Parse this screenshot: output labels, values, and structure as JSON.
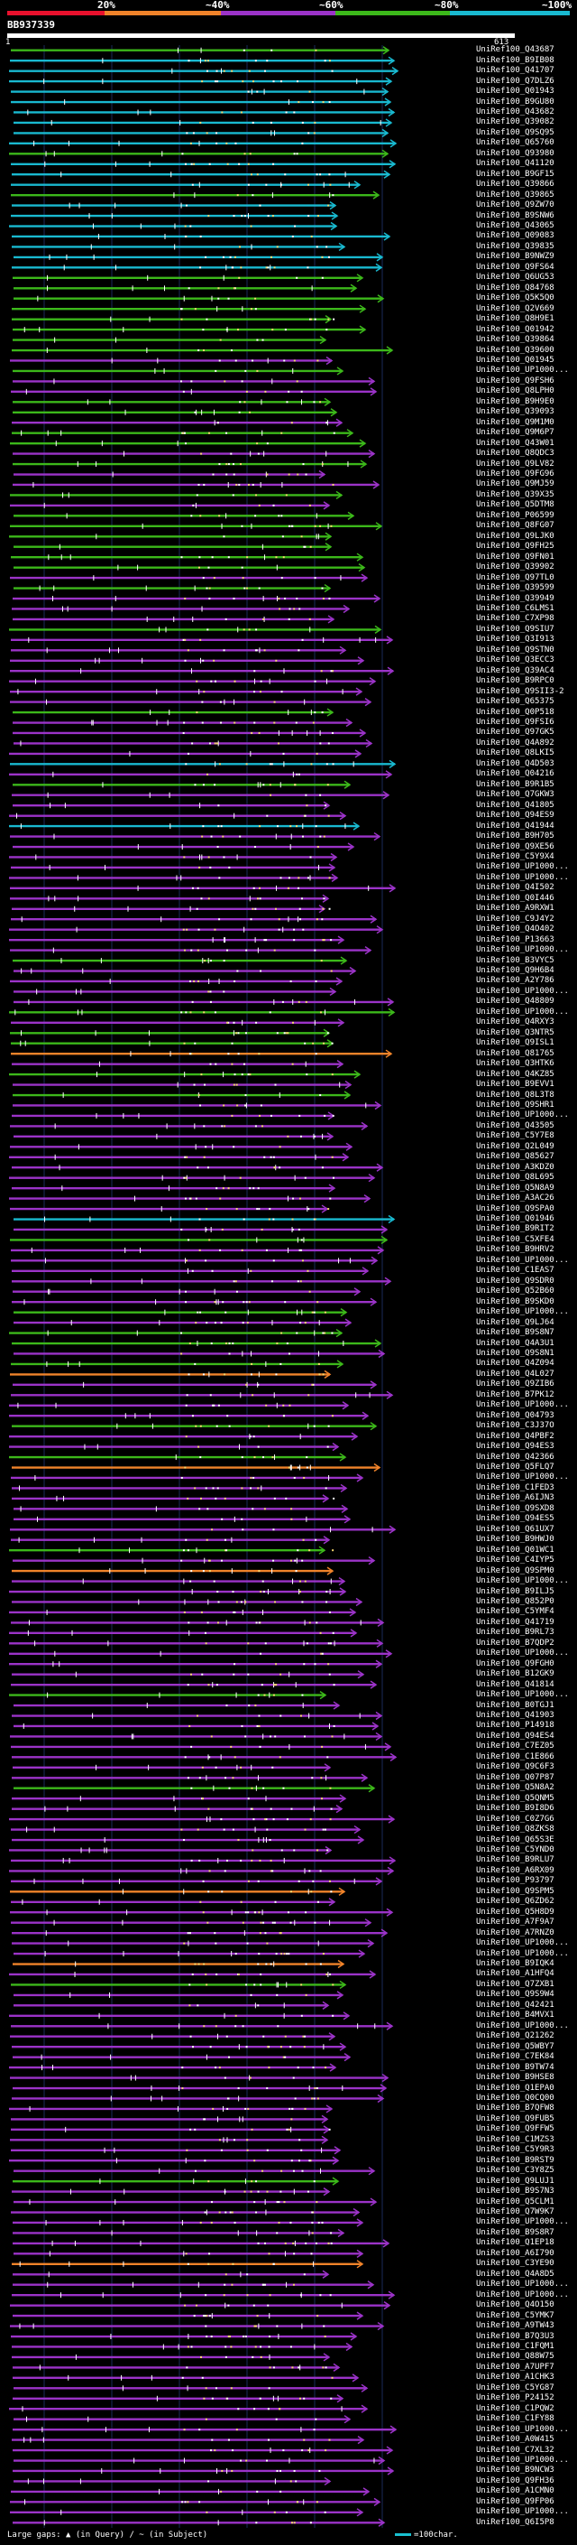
{
  "legend": {
    "labels": [
      "20%",
      "~40%",
      "~60%",
      "~80%",
      "~100%"
    ],
    "colors": [
      "#e8112d",
      "#f0832a",
      "#9b33c8",
      "#3cb81a",
      "#19b9d0"
    ]
  },
  "query": {
    "id": "BB937339",
    "start": "1",
    "end": "613"
  },
  "footer": {
    "text": "Large gaps: ▲ (in Query) / ~ (in Subject)",
    "scale": "=100char."
  },
  "hits": [
    {
      "id": "UniRef100_Q43687",
      "c": "g"
    },
    {
      "id": "UniRef100_B9IB08",
      "c": "c"
    },
    {
      "id": "UniRef100_Q41707",
      "c": "c"
    },
    {
      "id": "UniRef100_Q7DLZ6",
      "c": "c"
    },
    {
      "id": "UniRef100_Q01943",
      "c": "c"
    },
    {
      "id": "UniRef100_B9GU80",
      "c": "c"
    },
    {
      "id": "UniRef100_Q43682",
      "c": "c"
    },
    {
      "id": "UniRef100_Q39082",
      "c": "c"
    },
    {
      "id": "UniRef100_Q9SQ95",
      "c": "c"
    },
    {
      "id": "UniRef100_Q65760",
      "c": "c"
    },
    {
      "id": "UniRef100_Q93980",
      "c": "g"
    },
    {
      "id": "UniRef100_Q41120",
      "c": "c"
    },
    {
      "id": "UniRef100_B9GF15",
      "c": "c"
    },
    {
      "id": "UniRef100_Q39866",
      "c": "c"
    },
    {
      "id": "UniRef100_Q39865",
      "c": "g"
    },
    {
      "id": "UniRef100_Q9ZW70",
      "c": "c"
    },
    {
      "id": "UniRef100_B9SNW6",
      "c": "c"
    },
    {
      "id": "UniRef100_Q43065",
      "c": "c"
    },
    {
      "id": "UniRef100_Q09083",
      "c": "c"
    },
    {
      "id": "UniRef100_Q39835",
      "c": "c"
    },
    {
      "id": "UniRef100_B9NWZ9",
      "c": "c"
    },
    {
      "id": "UniRef100_Q9FS64",
      "c": "c"
    },
    {
      "id": "UniRef100_Q6UG53",
      "c": "g"
    },
    {
      "id": "UniRef100_Q84768",
      "c": "g"
    },
    {
      "id": "UniRef100_Q5K5Q0",
      "c": "g"
    },
    {
      "id": "UniRef100_Q2V669",
      "c": "g"
    },
    {
      "id": "UniRef100_Q8H9E1",
      "c": "g"
    },
    {
      "id": "UniRef100_Q01942",
      "c": "g"
    },
    {
      "id": "UniRef100_Q39864",
      "c": "g"
    },
    {
      "id": "UniRef100_Q39600",
      "c": "g"
    },
    {
      "id": "UniRef100_Q01945",
      "c": "m"
    },
    {
      "id": "UniRef100_UP1000...",
      "c": "g"
    },
    {
      "id": "UniRef100_Q9FSH6",
      "c": "m"
    },
    {
      "id": "UniRef100_Q8LPH0",
      "c": "m"
    },
    {
      "id": "UniRef100_B9H9E0",
      "c": "g"
    },
    {
      "id": "UniRef100_Q39093",
      "c": "g"
    },
    {
      "id": "UniRef100_Q9M1M0",
      "c": "m"
    },
    {
      "id": "UniRef100_Q9M6P7",
      "c": "g"
    },
    {
      "id": "UniRef100_Q43W01",
      "c": "g"
    },
    {
      "id": "UniRef100_Q8QDC3",
      "c": "m"
    },
    {
      "id": "UniRef100_Q9LV82",
      "c": "g"
    },
    {
      "id": "UniRef100_Q9FG96",
      "c": "m"
    },
    {
      "id": "UniRef100_Q9MJ59",
      "c": "m"
    },
    {
      "id": "UniRef100_Q39X35",
      "c": "g"
    },
    {
      "id": "UniRef100_Q5DTM8",
      "c": "m"
    },
    {
      "id": "UniRef100_P06599",
      "c": "g"
    },
    {
      "id": "UniRef100_Q8FG07",
      "c": "g"
    },
    {
      "id": "UniRef100_Q9LJK0",
      "c": "g"
    },
    {
      "id": "UniRef100_Q9FH25",
      "c": "g"
    },
    {
      "id": "UniRef100_Q9FN01",
      "c": "g"
    },
    {
      "id": "UniRef100_Q39902",
      "c": "g"
    },
    {
      "id": "UniRef100_Q97TL0",
      "c": "m"
    },
    {
      "id": "UniRef100_Q39599",
      "c": "g"
    },
    {
      "id": "UniRef100_Q39949",
      "c": "m"
    },
    {
      "id": "UniRef100_C6LMS1",
      "c": "m"
    },
    {
      "id": "UniRef100_C7XP98",
      "c": "m"
    },
    {
      "id": "UniRef100_Q9SIU7",
      "c": "g"
    },
    {
      "id": "UniRef100_Q3I913",
      "c": "m"
    },
    {
      "id": "UniRef100_Q9STN0",
      "c": "m"
    },
    {
      "id": "UniRef100_Q3ECC3",
      "c": "m"
    },
    {
      "id": "UniRef100_Q39AC4",
      "c": "m"
    },
    {
      "id": "UniRef100_B9RPC0",
      "c": "m"
    },
    {
      "id": "UniRef100_Q9SII3-2",
      "c": "m"
    },
    {
      "id": "UniRef100_Q65375",
      "c": "m"
    },
    {
      "id": "UniRef100_Q0P518",
      "c": "g"
    },
    {
      "id": "UniRef100_Q9FSI6",
      "c": "m"
    },
    {
      "id": "UniRef100_Q97GK5",
      "c": "m"
    },
    {
      "id": "UniRef100_Q4A892",
      "c": "m"
    },
    {
      "id": "UniRef100_Q8LKI5",
      "c": "m"
    },
    {
      "id": "UniRef100_Q4D503",
      "c": "c"
    },
    {
      "id": "UniRef100_Q04216",
      "c": "m"
    },
    {
      "id": "UniRef100_B9R1B5",
      "c": "g"
    },
    {
      "id": "UniRef100_Q7GKW3",
      "c": "m"
    },
    {
      "id": "UniRef100_Q41805",
      "c": "m"
    },
    {
      "id": "UniRef100_Q94ES9",
      "c": "m"
    },
    {
      "id": "UniRef100_Q41944",
      "c": "c"
    },
    {
      "id": "UniRef100_B9H705",
      "c": "m"
    },
    {
      "id": "UniRef100_Q9XE56",
      "c": "m"
    },
    {
      "id": "UniRef100_C5Y9X4",
      "c": "m"
    },
    {
      "id": "UniRef100_UP1000...",
      "c": "m"
    },
    {
      "id": "UniRef100_UP1000...",
      "c": "m"
    },
    {
      "id": "UniRef100_Q4I502",
      "c": "m"
    },
    {
      "id": "UniRef100_Q0I446",
      "c": "m"
    },
    {
      "id": "UniRef100_A9RXW1",
      "c": "m"
    },
    {
      "id": "UniRef100_C9J4Y2",
      "c": "m"
    },
    {
      "id": "UniRef100_Q4O402",
      "c": "m"
    },
    {
      "id": "UniRef100_P13663",
      "c": "m"
    },
    {
      "id": "UniRef100_UP1000...",
      "c": "m"
    },
    {
      "id": "UniRef100_B3VYC5",
      "c": "g"
    },
    {
      "id": "UniRef100_Q9H6B4",
      "c": "m"
    },
    {
      "id": "UniRef100_A2Y786",
      "c": "m"
    },
    {
      "id": "UniRef100_UP1000...",
      "c": "m"
    },
    {
      "id": "UniRef100_Q48809",
      "c": "m"
    },
    {
      "id": "UniRef100_UP1000...",
      "c": "g"
    },
    {
      "id": "UniRef100_Q4RXY3",
      "c": "m"
    },
    {
      "id": "UniRef100_Q3NTR5",
      "c": "g"
    },
    {
      "id": "UniRef100_Q9ISL1",
      "c": "g"
    },
    {
      "id": "UniRef100_Q81765",
      "c": "o"
    },
    {
      "id": "UniRef100_Q3HTK6",
      "c": "m"
    },
    {
      "id": "UniRef100_Q4KZ85",
      "c": "g"
    },
    {
      "id": "UniRef100_B9EVV1",
      "c": "m"
    },
    {
      "id": "UniRef100_Q8L3T8",
      "c": "g"
    },
    {
      "id": "UniRef100_Q9SHR1",
      "c": "m"
    },
    {
      "id": "UniRef100_UP1000...",
      "c": "m"
    },
    {
      "id": "UniRef100_Q43505",
      "c": "m"
    },
    {
      "id": "UniRef100_C5Y7E8",
      "c": "m"
    },
    {
      "id": "UniRef100_Q2L049",
      "c": "m"
    },
    {
      "id": "UniRef100_Q85627",
      "c": "m"
    },
    {
      "id": "UniRef100_A3KDZ0",
      "c": "m"
    },
    {
      "id": "UniRef100_Q8L695",
      "c": "m"
    },
    {
      "id": "UniRef100_Q5N8A9",
      "c": "m"
    },
    {
      "id": "UniRef100_A3AC26",
      "c": "m"
    },
    {
      "id": "UniRef100_Q9SPA0",
      "c": "m"
    },
    {
      "id": "UniRef100_Q01946",
      "c": "c"
    },
    {
      "id": "UniRef100_B9RIT2",
      "c": "m"
    },
    {
      "id": "UniRef100_C5XFE4",
      "c": "g"
    },
    {
      "id": "UniRef100_B9HRV2",
      "c": "m"
    },
    {
      "id": "UniRef100_UP1000...",
      "c": "m"
    },
    {
      "id": "UniRef100_C1EAS7",
      "c": "m"
    },
    {
      "id": "UniRef100_Q9SDR0",
      "c": "m"
    },
    {
      "id": "UniRef100_Q52B60",
      "c": "m"
    },
    {
      "id": "UniRef100_B9SKD0",
      "c": "m"
    },
    {
      "id": "UniRef100_UP1000...",
      "c": "g"
    },
    {
      "id": "UniRef100_Q9LJ64",
      "c": "m"
    },
    {
      "id": "UniRef100_B9S8N7",
      "c": "g"
    },
    {
      "id": "UniRef100_Q4A3U1",
      "c": "g"
    },
    {
      "id": "UniRef100_Q9S8N1",
      "c": "m"
    },
    {
      "id": "UniRef100_Q4Z094",
      "c": "g"
    },
    {
      "id": "UniRef100_Q4L027",
      "c": "o"
    },
    {
      "id": "UniRef100_Q9ZIB6",
      "c": "m"
    },
    {
      "id": "UniRef100_B7PK12",
      "c": "m"
    },
    {
      "id": "UniRef100_UP1000...",
      "c": "m"
    },
    {
      "id": "UniRef100_Q04793",
      "c": "m"
    },
    {
      "id": "UniRef100_C3J37O",
      "c": "g"
    },
    {
      "id": "UniRef100_Q4PBF2",
      "c": "m"
    },
    {
      "id": "UniRef100_Q94ES3",
      "c": "m"
    },
    {
      "id": "UniRef100_Q42366",
      "c": "g"
    },
    {
      "id": "UniRef100_Q5FLQ7",
      "c": "o"
    },
    {
      "id": "UniRef100_UP1000...",
      "c": "m"
    },
    {
      "id": "UniRef100_C1FED3",
      "c": "m"
    },
    {
      "id": "UniRef100_A6IJN3",
      "c": "m"
    },
    {
      "id": "UniRef100_Q9SXD8",
      "c": "m"
    },
    {
      "id": "UniRef100_Q94ES5",
      "c": "m"
    },
    {
      "id": "UniRef100_Q61UX7",
      "c": "m"
    },
    {
      "id": "UniRef100_B9HWJ0",
      "c": "m"
    },
    {
      "id": "UniRef100_Q01WC1",
      "c": "g"
    },
    {
      "id": "UniRef100_C4IYP5",
      "c": "m"
    },
    {
      "id": "UniRef100_Q9SPM0",
      "c": "o"
    },
    {
      "id": "UniRef100_UP1000...",
      "c": "m"
    },
    {
      "id": "UniRef100_B9ILJ5",
      "c": "m"
    },
    {
      "id": "UniRef100_Q852P0",
      "c": "m"
    },
    {
      "id": "UniRef100_C5YMF4",
      "c": "m"
    },
    {
      "id": "UniRef100_Q41719",
      "c": "m"
    },
    {
      "id": "UniRef100_B9RL73",
      "c": "m"
    },
    {
      "id": "UniRef100_B7QDP2",
      "c": "m"
    },
    {
      "id": "UniRef100_UP1000...",
      "c": "m"
    },
    {
      "id": "UniRef100_Q9FGH0",
      "c": "m"
    },
    {
      "id": "UniRef100_B12GK9",
      "c": "m"
    },
    {
      "id": "UniRef100_Q41814",
      "c": "m"
    },
    {
      "id": "UniRef100_UP1000...",
      "c": "g"
    },
    {
      "id": "UniRef100_B0TGJ1",
      "c": "m"
    },
    {
      "id": "UniRef100_Q41903",
      "c": "m"
    },
    {
      "id": "UniRef100_P14918",
      "c": "m"
    },
    {
      "id": "UniRef100_Q94ES4",
      "c": "m"
    },
    {
      "id": "UniRef100_C7EZ05",
      "c": "m"
    },
    {
      "id": "UniRef100_C1E866",
      "c": "m"
    },
    {
      "id": "UniRef100_Q9C6F3",
      "c": "m"
    },
    {
      "id": "UniRef100_Q07P87",
      "c": "m"
    },
    {
      "id": "UniRef100_Q5N8A2",
      "c": "g"
    },
    {
      "id": "UniRef100_Q5QNM5",
      "c": "m"
    },
    {
      "id": "UniRef100_B9I8D6",
      "c": "m"
    },
    {
      "id": "UniRef100_C0Z7G6",
      "c": "m"
    },
    {
      "id": "UniRef100_Q8ZKS8",
      "c": "m"
    },
    {
      "id": "UniRef100_Q65S3E",
      "c": "m"
    },
    {
      "id": "UniRef100_C5YND0",
      "c": "m"
    },
    {
      "id": "UniRef100_B9RLU7",
      "c": "m"
    },
    {
      "id": "UniRef100_A6RX09",
      "c": "m"
    },
    {
      "id": "UniRef100_P93797",
      "c": "m"
    },
    {
      "id": "UniRef100_Q9SPM5",
      "c": "o"
    },
    {
      "id": "UniRef100_Q6ZD62",
      "c": "m"
    },
    {
      "id": "UniRef100_Q5H8D9",
      "c": "m"
    },
    {
      "id": "UniRef100_A7F9A7",
      "c": "m"
    },
    {
      "id": "UniRef100_A7RNZ0",
      "c": "m"
    },
    {
      "id": "UniRef100_UP1000...",
      "c": "m"
    },
    {
      "id": "UniRef100_UP1000...",
      "c": "m"
    },
    {
      "id": "UniRef100_B9IQK4",
      "c": "o"
    },
    {
      "id": "UniRef100_A1HFQ4",
      "c": "m"
    },
    {
      "id": "UniRef100_Q7ZXB1",
      "c": "g"
    },
    {
      "id": "UniRef100_Q9S9W4",
      "c": "m"
    },
    {
      "id": "UniRef100_Q42421",
      "c": "m"
    },
    {
      "id": "UniRef100_B4MVX1",
      "c": "m"
    },
    {
      "id": "UniRef100_UP1000...",
      "c": "m"
    },
    {
      "id": "UniRef100_Q21262",
      "c": "m"
    },
    {
      "id": "UniRef100_Q5WBY7",
      "c": "m"
    },
    {
      "id": "UniRef100_C7EK84",
      "c": "m"
    },
    {
      "id": "UniRef100_B9TW74",
      "c": "m"
    },
    {
      "id": "UniRef100_B9HSE8",
      "c": "m"
    },
    {
      "id": "UniRef100_Q1EPA0",
      "c": "m"
    },
    {
      "id": "UniRef100_Q0CQ00",
      "c": "m"
    },
    {
      "id": "UniRef100_B7QFW8",
      "c": "m"
    },
    {
      "id": "UniRef100_Q9FUB5",
      "c": "m"
    },
    {
      "id": "UniRef100_Q9FFW5",
      "c": "m"
    },
    {
      "id": "UniRef100_C1MZS3",
      "c": "m"
    },
    {
      "id": "UniRef100_C5Y9R3",
      "c": "m"
    },
    {
      "id": "UniRef100_B9RST9",
      "c": "m"
    },
    {
      "id": "UniRef100_C3Y8Z5",
      "c": "m"
    },
    {
      "id": "UniRef100_Q9LUJ1",
      "c": "g"
    },
    {
      "id": "UniRef100_B9S7N3",
      "c": "m"
    },
    {
      "id": "UniRef100_Q5CLM1",
      "c": "m"
    },
    {
      "id": "UniRef100_Q7W9K7",
      "c": "m"
    },
    {
      "id": "UniRef100_UP1000...",
      "c": "m"
    },
    {
      "id": "UniRef100_B9S8R7",
      "c": "m"
    },
    {
      "id": "UniRef100_Q1EP18",
      "c": "m"
    },
    {
      "id": "UniRef100_A6I790",
      "c": "m"
    },
    {
      "id": "UniRef100_C3YE90",
      "c": "o"
    },
    {
      "id": "UniRef100_Q4A8D5",
      "c": "m"
    },
    {
      "id": "UniRef100_UP1000...",
      "c": "m"
    },
    {
      "id": "UniRef100_UP1000...",
      "c": "m"
    },
    {
      "id": "UniRef100_Q4O150",
      "c": "m"
    },
    {
      "id": "UniRef100_C5YMK7",
      "c": "m"
    },
    {
      "id": "UniRef100_A9TW43",
      "c": "m"
    },
    {
      "id": "UniRef100_B7Q3U3",
      "c": "m"
    },
    {
      "id": "UniRef100_C1FQM1",
      "c": "m"
    },
    {
      "id": "UniRef100_Q88W75",
      "c": "m"
    },
    {
      "id": "UniRef100_A7UPF7",
      "c": "m"
    },
    {
      "id": "UniRef100_A1CHK3",
      "c": "m"
    },
    {
      "id": "UniRef100_C5YG87",
      "c": "m"
    },
    {
      "id": "UniRef100_P24152",
      "c": "m"
    },
    {
      "id": "UniRef100_C1PQW2",
      "c": "m"
    },
    {
      "id": "UniRef100_C1FY88",
      "c": "m"
    },
    {
      "id": "UniRef100_UP1000...",
      "c": "m"
    },
    {
      "id": "UniRef100_A0W415",
      "c": "m"
    },
    {
      "id": "UniRef100_C7XL32",
      "c": "m"
    },
    {
      "id": "UniRef100_UP1000...",
      "c": "m"
    },
    {
      "id": "UniRef100_B9NCW3",
      "c": "m"
    },
    {
      "id": "UniRef100_Q9FH36",
      "c": "m"
    },
    {
      "id": "UniRef100_A1CMN0",
      "c": "m"
    },
    {
      "id": "UniRef100_Q9FP06",
      "c": "m"
    },
    {
      "id": "UniRef100_UP1000...",
      "c": "m"
    },
    {
      "id": "UniRef100_Q6I5P8",
      "c": "m"
    }
  ]
}
